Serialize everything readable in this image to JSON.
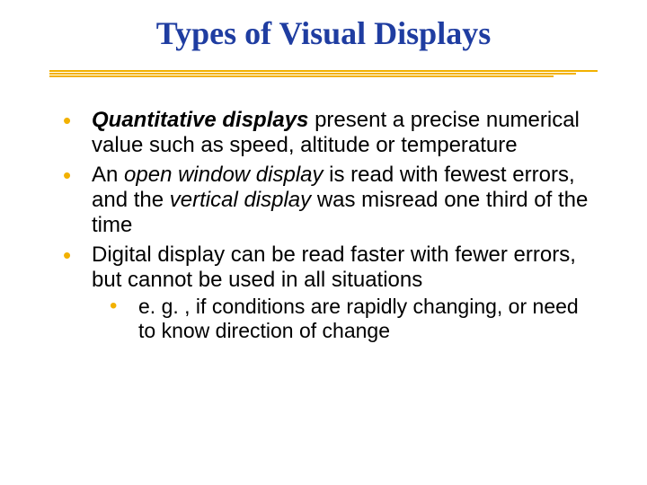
{
  "slide": {
    "title": "Types of Visual Displays",
    "title_color": "#1f3da1",
    "title_font_family": "Times New Roman",
    "title_font_size_pt": 36,
    "title_font_weight": "bold",
    "underline_color": "#f2b100",
    "body_font_family": "Verdana",
    "body_font_size_pt": 24,
    "body_color": "#000000",
    "bullet_color": "#f2b100",
    "background_color": "#ffffff",
    "bullets": [
      {
        "runs": [
          {
            "text": "Quantitative displays",
            "style": "bold-italic"
          },
          {
            "text": " present a precise numerical value such as speed, altitude or temperature",
            "style": "normal"
          }
        ]
      },
      {
        "runs": [
          {
            "text": "An ",
            "style": "normal"
          },
          {
            "text": "open window display",
            "style": "italic"
          },
          {
            "text": " is read with fewest errors, and the ",
            "style": "normal"
          },
          {
            "text": "vertical display",
            "style": "italic"
          },
          {
            "text": " was misread one third of the time",
            "style": "normal"
          }
        ]
      },
      {
        "runs": [
          {
            "text": "Digital display can be read faster with fewer errors, but cannot be used in all situations",
            "style": "normal"
          }
        ],
        "sub": [
          {
            "runs": [
              {
                "text": "e. g. , if conditions are rapidly changing, or need to know direction of change",
                "style": "normal"
              }
            ]
          }
        ]
      }
    ]
  }
}
